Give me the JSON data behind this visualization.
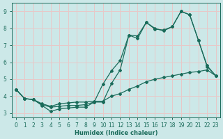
{
  "xlabel": "Humidex (Indice chaleur)",
  "bg_color": "#cce8e8",
  "grid_color": "#e8c8c8",
  "line_color": "#1a6b5a",
  "xlim": [
    -0.5,
    23.5
  ],
  "ylim": [
    2.75,
    9.5
  ],
  "xticks": [
    0,
    1,
    2,
    3,
    4,
    5,
    6,
    7,
    8,
    9,
    10,
    11,
    12,
    13,
    14,
    15,
    16,
    17,
    18,
    19,
    20,
    21,
    22,
    23
  ],
  "yticks": [
    3,
    4,
    5,
    6,
    7,
    8,
    9
  ],
  "line1_x": [
    0,
    1,
    2,
    3,
    4,
    5,
    6,
    7,
    8,
    9,
    10,
    11,
    12,
    13,
    14,
    15,
    16,
    17,
    18,
    19,
    20,
    21,
    22,
    23
  ],
  "line1_y": [
    4.4,
    3.85,
    3.8,
    3.45,
    3.1,
    3.25,
    3.3,
    3.35,
    3.35,
    3.65,
    3.65,
    4.75,
    5.55,
    7.6,
    7.4,
    8.35,
    8.0,
    7.85,
    8.1,
    9.0,
    8.8,
    7.3,
    5.8,
    5.2
  ],
  "line2_x": [
    0,
    1,
    2,
    3,
    4,
    5,
    6,
    7,
    8,
    9,
    10,
    11,
    12,
    13,
    14,
    15,
    16,
    17,
    18,
    19,
    20,
    21,
    22,
    23
  ],
  "line2_y": [
    4.4,
    3.85,
    3.8,
    3.5,
    3.35,
    3.4,
    3.45,
    3.45,
    3.5,
    3.65,
    4.7,
    5.5,
    6.1,
    7.6,
    7.55,
    8.35,
    7.95,
    7.9,
    8.1,
    9.0,
    8.8,
    7.3,
    5.75,
    5.2
  ],
  "line3_x": [
    0,
    1,
    2,
    3,
    4,
    5,
    6,
    7,
    8,
    9,
    10,
    11,
    12,
    13,
    14,
    15,
    16,
    17,
    18,
    19,
    20,
    21,
    22,
    23
  ],
  "line3_y": [
    4.4,
    3.85,
    3.8,
    3.55,
    3.4,
    3.55,
    3.6,
    3.65,
    3.65,
    3.7,
    3.7,
    4.0,
    4.15,
    4.4,
    4.6,
    4.85,
    5.0,
    5.1,
    5.2,
    5.3,
    5.4,
    5.45,
    5.55,
    5.2
  ]
}
